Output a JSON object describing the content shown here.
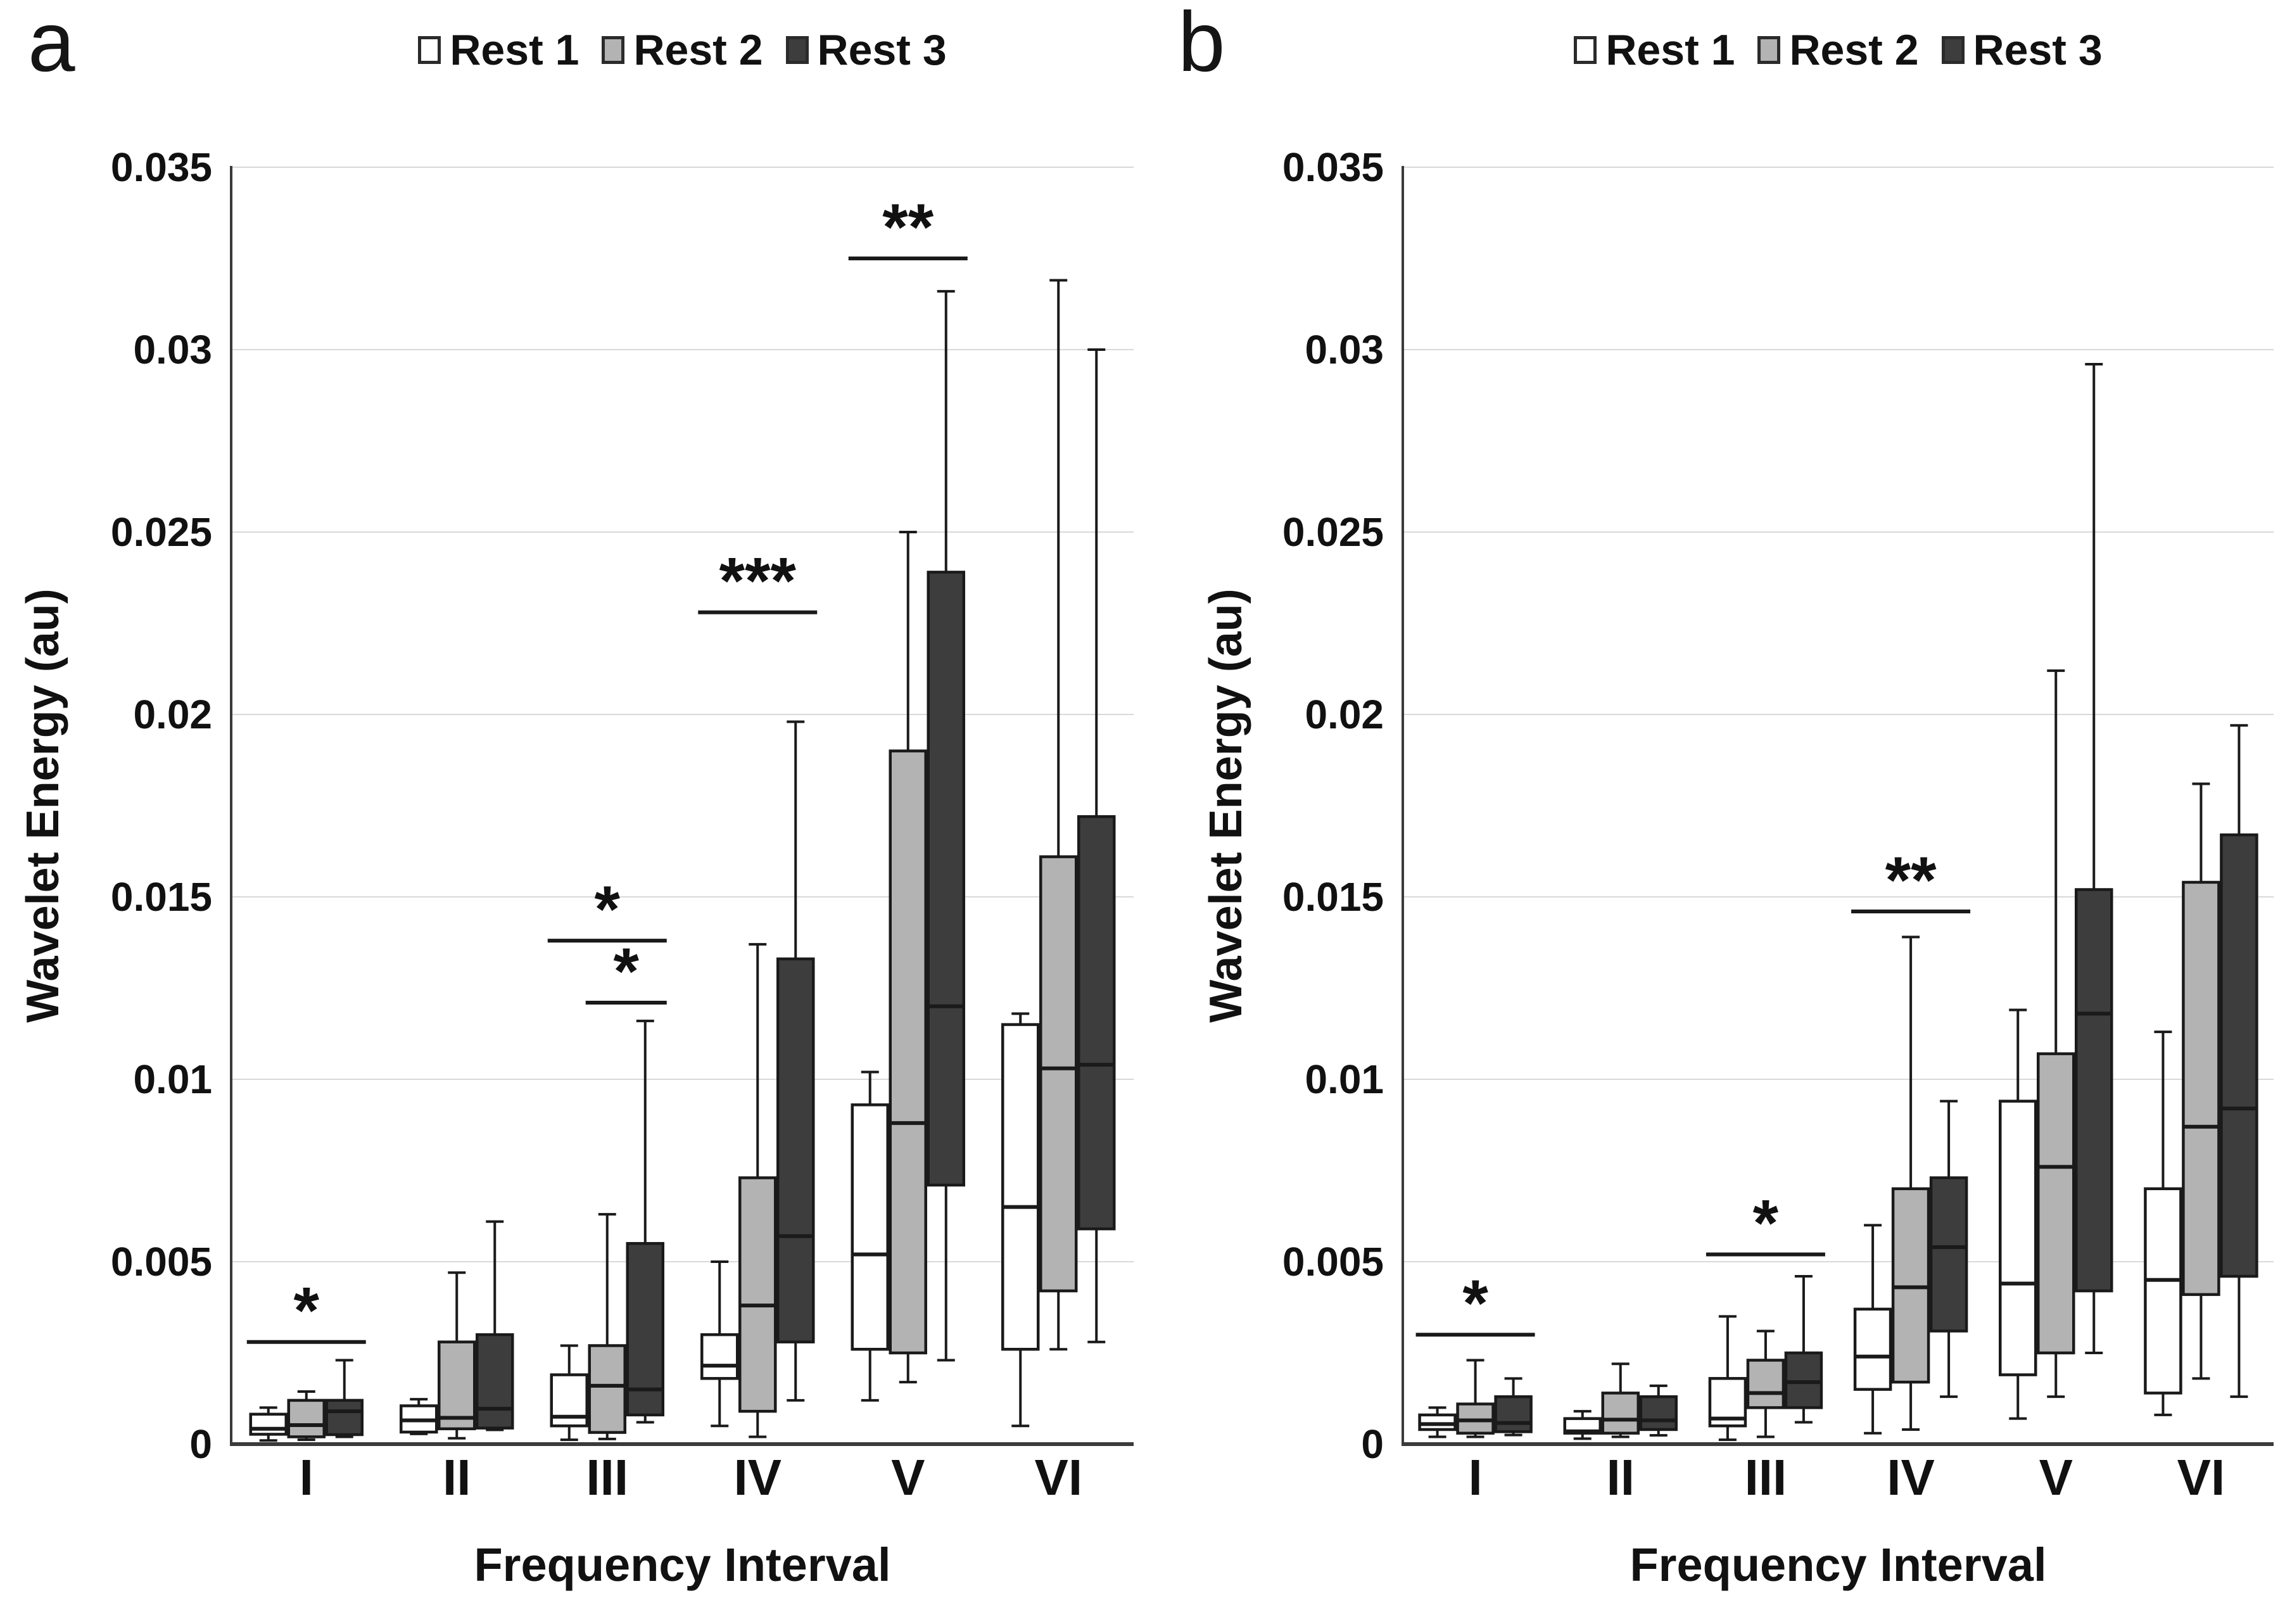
{
  "figure": {
    "background": "#ffffff",
    "grid_color": "#d9d9d9",
    "axis_color": "#3a3a3a",
    "box_stroke": "#1a1a1a",
    "text_color": "#111111"
  },
  "chart_data": [
    {
      "type": "boxplot",
      "panel_label": "a",
      "title": "",
      "xlabel": "Frequency Interval",
      "ylabel": "Wavelet Energy (au)",
      "ylim": [
        0,
        0.035
      ],
      "yticks": [
        0,
        0.005,
        0.01,
        0.015,
        0.02,
        0.025,
        0.03,
        0.035
      ],
      "ytick_labels": [
        "0",
        "0.005",
        "0.01",
        "0.015",
        "0.02",
        "0.025",
        "0.03",
        "0.035"
      ],
      "categories": [
        "I",
        "II",
        "III",
        "IV",
        "V",
        "VI"
      ],
      "grid": true,
      "legend_position": "top-center",
      "series": [
        {
          "name": "Rest 1",
          "fill": "#ffffff",
          "boxes": [
            {
              "low": 0.0001,
              "q1": 0.00027,
              "med": 0.00042,
              "q3": 0.00082,
              "high": 0.001
            },
            {
              "low": 0.00028,
              "q1": 0.00033,
              "med": 0.00065,
              "q3": 0.00105,
              "high": 0.00123
            },
            {
              "low": 0.00012,
              "q1": 0.0005,
              "med": 0.00075,
              "q3": 0.0019,
              "high": 0.0027
            },
            {
              "low": 0.0005,
              "q1": 0.0018,
              "med": 0.00215,
              "q3": 0.003,
              "high": 0.005
            },
            {
              "low": 0.0012,
              "q1": 0.0026,
              "med": 0.0052,
              "q3": 0.0093,
              "high": 0.0102
            },
            {
              "low": 0.0005,
              "q1": 0.0026,
              "med": 0.0065,
              "q3": 0.0115,
              "high": 0.0118
            }
          ]
        },
        {
          "name": "Rest 2",
          "fill": "#b3b3b3",
          "boxes": [
            {
              "low": 0.00012,
              "q1": 0.0002,
              "med": 0.00052,
              "q3": 0.0012,
              "high": 0.00144
            },
            {
              "low": 0.00016,
              "q1": 0.00042,
              "med": 0.00072,
              "q3": 0.0028,
              "high": 0.0047
            },
            {
              "low": 0.00014,
              "q1": 0.00032,
              "med": 0.0016,
              "q3": 0.0027,
              "high": 0.0063
            },
            {
              "low": 0.0002,
              "q1": 0.0009,
              "med": 0.0038,
              "q3": 0.0073,
              "high": 0.0137
            },
            {
              "low": 0.0017,
              "q1": 0.0025,
              "med": 0.0088,
              "q3": 0.019,
              "high": 0.025
            },
            {
              "low": 0.0026,
              "q1": 0.0042,
              "med": 0.0103,
              "q3": 0.0161,
              "high": 0.0319
            }
          ]
        },
        {
          "name": "Rest 3",
          "fill": "#3d3d3d",
          "boxes": [
            {
              "low": 0.0002,
              "q1": 0.00026,
              "med": 0.0009,
              "q3": 0.0012,
              "high": 0.0023
            },
            {
              "low": 0.00039,
              "q1": 0.00044,
              "med": 0.00097,
              "q3": 0.003,
              "high": 0.0061
            },
            {
              "low": 0.0006,
              "q1": 0.0008,
              "med": 0.0015,
              "q3": 0.0055,
              "high": 0.0116
            },
            {
              "low": 0.0012,
              "q1": 0.0028,
              "med": 0.0057,
              "q3": 0.0133,
              "high": 0.0198
            },
            {
              "low": 0.0023,
              "q1": 0.0071,
              "med": 0.012,
              "q3": 0.0239,
              "high": 0.0316
            },
            {
              "low": 0.0028,
              "q1": 0.0059,
              "med": 0.0104,
              "q3": 0.0172,
              "high": 0.03
            }
          ]
        }
      ],
      "significance": [
        {
          "label": "*",
          "category": "I",
          "span": [
            "Rest 1",
            "Rest 3"
          ],
          "y": 0.0028
        },
        {
          "label": "*",
          "category": "III",
          "span": [
            "Rest 2",
            "Rest 3"
          ],
          "y": 0.0121
        },
        {
          "label": "*",
          "category": "III",
          "span": [
            "Rest 1",
            "Rest 3"
          ],
          "y": 0.0138
        },
        {
          "label": "***",
          "category": "IV",
          "span": [
            "Rest 1",
            "Rest 3"
          ],
          "y": 0.0228
        },
        {
          "label": "**",
          "category": "V",
          "span": [
            "Rest 1",
            "Rest 3"
          ],
          "y": 0.0325
        }
      ]
    },
    {
      "type": "boxplot",
      "panel_label": "b",
      "title": "",
      "xlabel": "Frequency Interval",
      "ylabel": "Wavelet Energy (au)",
      "ylim": [
        0,
        0.035
      ],
      "yticks": [
        0,
        0.005,
        0.01,
        0.015,
        0.02,
        0.025,
        0.03,
        0.035
      ],
      "ytick_labels": [
        "0",
        "0.005",
        "0.01",
        "0.015",
        "0.02",
        "0.025",
        "0.03",
        "0.035"
      ],
      "categories": [
        "I",
        "II",
        "III",
        "IV",
        "V",
        "VI"
      ],
      "grid": true,
      "legend_position": "top-center",
      "series": [
        {
          "name": "Rest 1",
          "fill": "#ffffff",
          "boxes": [
            {
              "low": 0.0002,
              "q1": 0.0004,
              "med": 0.00055,
              "q3": 0.0008,
              "high": 0.001
            },
            {
              "low": 0.00015,
              "q1": 0.0003,
              "med": 0.00035,
              "q3": 0.0007,
              "high": 0.0009
            },
            {
              "low": 0.00012,
              "q1": 0.0005,
              "med": 0.0007,
              "q3": 0.0018,
              "high": 0.0035
            },
            {
              "low": 0.0003,
              "q1": 0.0015,
              "med": 0.0024,
              "q3": 0.0037,
              "high": 0.006
            },
            {
              "low": 0.0007,
              "q1": 0.0019,
              "med": 0.0044,
              "q3": 0.0094,
              "high": 0.0119
            },
            {
              "low": 0.0008,
              "q1": 0.0014,
              "med": 0.0045,
              "q3": 0.007,
              "high": 0.0113
            }
          ]
        },
        {
          "name": "Rest 2",
          "fill": "#b3b3b3",
          "boxes": [
            {
              "low": 0.0002,
              "q1": 0.0003,
              "med": 0.00065,
              "q3": 0.0011,
              "high": 0.0023
            },
            {
              "low": 0.0002,
              "q1": 0.0003,
              "med": 0.00067,
              "q3": 0.0014,
              "high": 0.0022
            },
            {
              "low": 0.0002,
              "q1": 0.001,
              "med": 0.0014,
              "q3": 0.0023,
              "high": 0.0031
            },
            {
              "low": 0.0004,
              "q1": 0.0017,
              "med": 0.0043,
              "q3": 0.007,
              "high": 0.0139
            },
            {
              "low": 0.0013,
              "q1": 0.0025,
              "med": 0.0076,
              "q3": 0.0107,
              "high": 0.0212
            },
            {
              "low": 0.0018,
              "q1": 0.0041,
              "med": 0.0087,
              "q3": 0.0154,
              "high": 0.0181
            }
          ]
        },
        {
          "name": "Rest 3",
          "fill": "#3d3d3d",
          "boxes": [
            {
              "low": 0.00025,
              "q1": 0.00034,
              "med": 0.00058,
              "q3": 0.0013,
              "high": 0.0018
            },
            {
              "low": 0.00024,
              "q1": 0.0004,
              "med": 0.00065,
              "q3": 0.0013,
              "high": 0.0016
            },
            {
              "low": 0.0006,
              "q1": 0.001,
              "med": 0.0017,
              "q3": 0.0025,
              "high": 0.0046
            },
            {
              "low": 0.0013,
              "q1": 0.0031,
              "med": 0.0054,
              "q3": 0.0073,
              "high": 0.0094
            },
            {
              "low": 0.0025,
              "q1": 0.0042,
              "med": 0.0118,
              "q3": 0.0152,
              "high": 0.0296
            },
            {
              "low": 0.0013,
              "q1": 0.0046,
              "med": 0.0092,
              "q3": 0.0167,
              "high": 0.0197
            }
          ]
        }
      ],
      "significance": [
        {
          "label": "*",
          "category": "I",
          "span": [
            "Rest 1",
            "Rest 3"
          ],
          "y": 0.003
        },
        {
          "label": "*",
          "category": "III",
          "span": [
            "Rest 1",
            "Rest 3"
          ],
          "y": 0.0052
        },
        {
          "label": "**",
          "category": "IV",
          "span": [
            "Rest 1",
            "Rest 3"
          ],
          "y": 0.0146
        }
      ]
    }
  ]
}
